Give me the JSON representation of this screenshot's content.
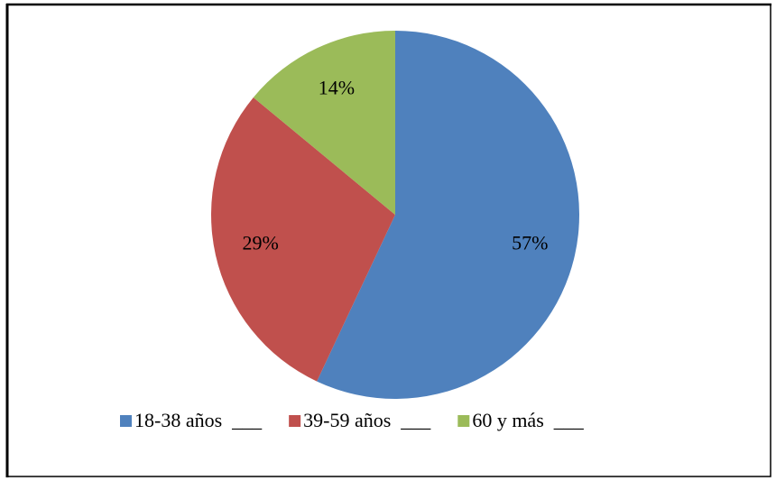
{
  "chart_data": {
    "type": "pie",
    "categories": [
      "18-38 años  ___",
      "39-59 años  ___",
      "60 y más  ___"
    ],
    "values": [
      57,
      29,
      14
    ],
    "value_labels": [
      "57%",
      "29%",
      "14%"
    ],
    "colors": [
      "#4f81bd",
      "#c0504d",
      "#9bbb59"
    ],
    "legend": "bottom"
  }
}
